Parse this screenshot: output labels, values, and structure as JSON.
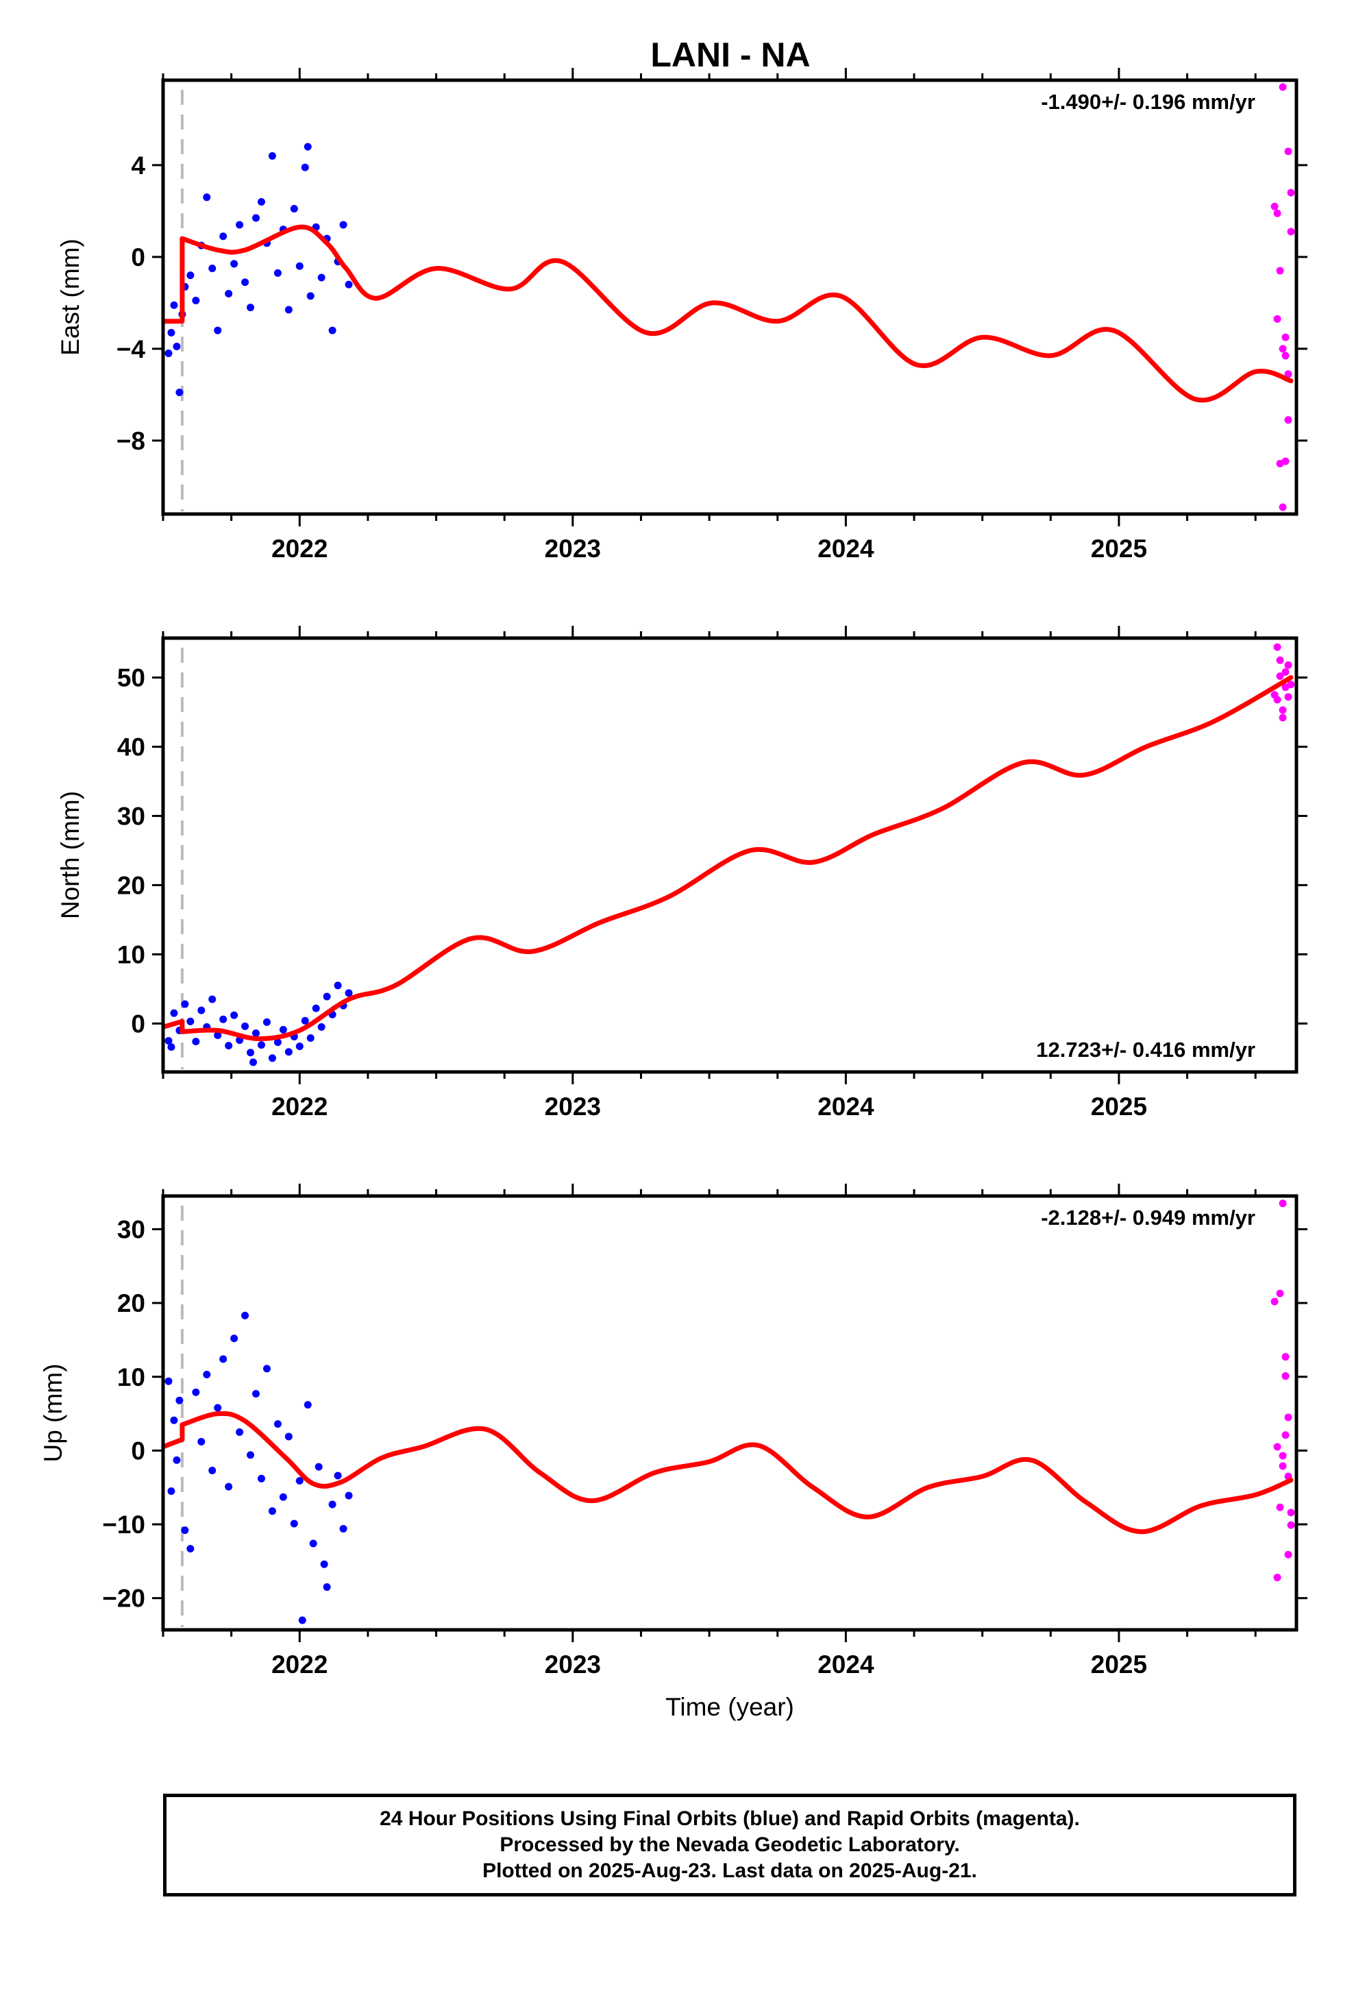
{
  "title": "LANI - NA",
  "colors": {
    "final": "#0000ff",
    "rapid": "#ff00ff",
    "model": "#ff0000",
    "event_line": "#bbbbbb"
  },
  "footer": {
    "line1": "24 Hour Positions Using Final Orbits (blue) and Rapid Orbits (magenta).",
    "line2": "Processed by the Nevada Geodetic Laboratory.",
    "line3": "Plotted on 2025-Aug-23. Last data on 2025-Aug-21."
  },
  "chart_data": [
    {
      "type": "scatter",
      "ylabel": "East (mm)",
      "xlabel": "",
      "xlim": [
        2021.5,
        2025.65
      ],
      "ylim": [
        -11.2,
        7.7
      ],
      "yticks": [
        4,
        0,
        -4,
        -8
      ],
      "xticks": [
        2022,
        2023,
        2024,
        2025
      ],
      "event_line_x": 2021.57,
      "rate_label": "-1.490+/- 0.196 mm/yr",
      "rate_label_position": "top-right",
      "series": [
        {
          "role": "final",
          "points": [
            [
              2021.52,
              -4.2
            ],
            [
              2021.53,
              -3.3
            ],
            [
              2021.54,
              -2.1
            ],
            [
              2021.55,
              -3.9
            ],
            [
              2021.56,
              -5.9
            ],
            [
              2021.57,
              -2.5
            ],
            [
              2021.58,
              -1.3
            ],
            [
              2021.6,
              -0.8
            ],
            [
              2021.62,
              -1.9
            ],
            [
              2021.64,
              0.5
            ],
            [
              2021.66,
              2.6
            ],
            [
              2021.68,
              -0.5
            ],
            [
              2021.7,
              -3.2
            ],
            [
              2021.72,
              0.9
            ],
            [
              2021.74,
              -1.6
            ],
            [
              2021.76,
              -0.3
            ],
            [
              2021.78,
              1.4
            ],
            [
              2021.8,
              -1.1
            ],
            [
              2021.82,
              -2.2
            ],
            [
              2021.84,
              1.7
            ],
            [
              2021.86,
              2.4
            ],
            [
              2021.88,
              0.6
            ],
            [
              2021.9,
              4.4
            ],
            [
              2021.92,
              -0.7
            ],
            [
              2021.94,
              1.2
            ],
            [
              2021.96,
              -2.3
            ],
            [
              2021.98,
              2.1
            ],
            [
              2022.0,
              -0.4
            ],
            [
              2022.02,
              3.9
            ],
            [
              2022.04,
              -1.7
            ],
            [
              2022.06,
              1.3
            ],
            [
              2022.08,
              -0.9
            ],
            [
              2022.1,
              0.8
            ],
            [
              2022.12,
              -3.2
            ],
            [
              2022.14,
              -0.2
            ],
            [
              2022.16,
              1.4
            ],
            [
              2022.18,
              -1.2
            ],
            [
              2022.03,
              4.8
            ]
          ]
        },
        {
          "role": "rapid",
          "points": [
            [
              2025.57,
              2.2
            ],
            [
              2025.58,
              -2.7
            ],
            [
              2025.59,
              -0.6
            ],
            [
              2025.6,
              -4.0
            ],
            [
              2025.61,
              -8.9
            ],
            [
              2025.62,
              -5.1
            ],
            [
              2025.6,
              7.4
            ],
            [
              2025.62,
              4.6
            ],
            [
              2025.63,
              2.8
            ],
            [
              2025.58,
              1.9
            ],
            [
              2025.61,
              -3.5
            ],
            [
              2025.62,
              -7.1
            ],
            [
              2025.59,
              -9.0
            ],
            [
              2025.6,
              -10.9
            ],
            [
              2025.63,
              1.1
            ],
            [
              2025.61,
              -4.3
            ]
          ]
        }
      ],
      "model": [
        [
          2021.5,
          -2.8
        ],
        [
          2021.57,
          -2.8
        ],
        [
          2021.57,
          0.8
        ],
        [
          2021.7,
          0.3
        ],
        [
          2021.8,
          0.3
        ],
        [
          2022.0,
          1.3
        ],
        [
          2022.1,
          0.6
        ],
        [
          2022.17,
          -0.5
        ],
        [
          2022.28,
          -1.8
        ],
        [
          2022.5,
          -0.5
        ],
        [
          2022.77,
          -1.4
        ],
        [
          2022.96,
          -0.2
        ],
        [
          2023.27,
          -3.3
        ],
        [
          2023.51,
          -2.0
        ],
        [
          2023.75,
          -2.8
        ],
        [
          2023.98,
          -1.7
        ],
        [
          2024.26,
          -4.7
        ],
        [
          2024.5,
          -3.5
        ],
        [
          2024.75,
          -4.3
        ],
        [
          2024.98,
          -3.2
        ],
        [
          2025.28,
          -6.2
        ],
        [
          2025.5,
          -5.0
        ],
        [
          2025.63,
          -5.4
        ]
      ]
    },
    {
      "type": "scatter",
      "ylabel": "North (mm)",
      "xlabel": "",
      "xlim": [
        2021.5,
        2025.65
      ],
      "ylim": [
        -7,
        55.7
      ],
      "yticks": [
        50,
        40,
        30,
        20,
        10,
        0
      ],
      "xticks": [
        2022,
        2023,
        2024,
        2025
      ],
      "event_line_x": 2021.57,
      "rate_label": "12.723+/- 0.416 mm/yr",
      "rate_label_position": "bottom-right",
      "series": [
        {
          "role": "final",
          "points": [
            [
              2021.52,
              -2.5
            ],
            [
              2021.54,
              1.5
            ],
            [
              2021.56,
              -1.0
            ],
            [
              2021.58,
              2.8
            ],
            [
              2021.6,
              0.3
            ],
            [
              2021.62,
              -2.6
            ],
            [
              2021.64,
              1.9
            ],
            [
              2021.66,
              -0.5
            ],
            [
              2021.68,
              3.5
            ],
            [
              2021.7,
              -1.7
            ],
            [
              2021.72,
              0.6
            ],
            [
              2021.74,
              -3.2
            ],
            [
              2021.76,
              1.2
            ],
            [
              2021.78,
              -2.4
            ],
            [
              2021.8,
              -0.4
            ],
            [
              2021.82,
              -4.2
            ],
            [
              2021.84,
              -1.4
            ],
            [
              2021.86,
              -3.1
            ],
            [
              2021.88,
              0.2
            ],
            [
              2021.9,
              -5.0
            ],
            [
              2021.92,
              -2.7
            ],
            [
              2021.94,
              -0.9
            ],
            [
              2021.96,
              -4.1
            ],
            [
              2021.98,
              -1.9
            ],
            [
              2022.0,
              -3.3
            ],
            [
              2022.02,
              0.4
            ],
            [
              2022.04,
              -2.1
            ],
            [
              2022.06,
              2.2
            ],
            [
              2022.08,
              -0.5
            ],
            [
              2022.1,
              3.9
            ],
            [
              2022.12,
              1.3
            ],
            [
              2022.14,
              5.5
            ],
            [
              2022.16,
              2.6
            ],
            [
              2022.18,
              4.4
            ],
            [
              2021.53,
              -3.4
            ],
            [
              2021.83,
              -5.6
            ]
          ]
        },
        {
          "role": "rapid",
          "points": [
            [
              2025.57,
              47.5
            ],
            [
              2025.58,
              54.4
            ],
            [
              2025.59,
              50.2
            ],
            [
              2025.6,
              45.3
            ],
            [
              2025.61,
              48.6
            ],
            [
              2025.62,
              51.8
            ],
            [
              2025.63,
              49.0
            ],
            [
              2025.6,
              44.2
            ],
            [
              2025.58,
              46.8
            ],
            [
              2025.62,
              47.2
            ],
            [
              2025.59,
              52.5
            ],
            [
              2025.61,
              50.8
            ]
          ]
        }
      ],
      "model": [
        [
          2021.5,
          -0.5
        ],
        [
          2021.57,
          0.3
        ],
        [
          2021.57,
          -1.2
        ],
        [
          2021.7,
          -1.0
        ],
        [
          2021.85,
          -2.2
        ],
        [
          2022.0,
          -1.0
        ],
        [
          2022.18,
          3.5
        ],
        [
          2022.35,
          5.5
        ],
        [
          2022.63,
          12.3
        ],
        [
          2022.85,
          10.4
        ],
        [
          2023.1,
          14.6
        ],
        [
          2023.35,
          18.3
        ],
        [
          2023.65,
          25.0
        ],
        [
          2023.88,
          23.3
        ],
        [
          2024.1,
          27.3
        ],
        [
          2024.35,
          31.0
        ],
        [
          2024.65,
          37.7
        ],
        [
          2024.87,
          35.9
        ],
        [
          2025.1,
          40.0
        ],
        [
          2025.35,
          43.7
        ],
        [
          2025.63,
          50.0
        ]
      ]
    },
    {
      "type": "scatter",
      "ylabel": "Up (mm)",
      "xlabel": "Time (year)",
      "xlim": [
        2021.5,
        2025.65
      ],
      "ylim": [
        -24.3,
        34.5
      ],
      "yticks": [
        30,
        20,
        10,
        0,
        -10,
        -20
      ],
      "xticks": [
        2022,
        2023,
        2024,
        2025
      ],
      "event_line_x": 2021.57,
      "rate_label": "-2.128+/- 0.949 mm/yr",
      "rate_label_position": "top-right",
      "series": [
        {
          "role": "final",
          "points": [
            [
              2021.52,
              9.4
            ],
            [
              2021.53,
              -5.5
            ],
            [
              2021.54,
              4.1
            ],
            [
              2021.55,
              -1.3
            ],
            [
              2021.56,
              6.8
            ],
            [
              2021.58,
              -10.8
            ],
            [
              2021.6,
              -13.3
            ],
            [
              2021.62,
              7.9
            ],
            [
              2021.64,
              1.2
            ],
            [
              2021.66,
              10.3
            ],
            [
              2021.68,
              -2.7
            ],
            [
              2021.7,
              5.8
            ],
            [
              2021.72,
              12.4
            ],
            [
              2021.74,
              -4.9
            ],
            [
              2021.76,
              15.2
            ],
            [
              2021.78,
              2.5
            ],
            [
              2021.8,
              18.3
            ],
            [
              2021.82,
              -0.6
            ],
            [
              2021.84,
              7.7
            ],
            [
              2021.86,
              -3.8
            ],
            [
              2021.88,
              11.1
            ],
            [
              2021.9,
              -8.2
            ],
            [
              2021.92,
              3.6
            ],
            [
              2021.94,
              -6.3
            ],
            [
              2021.96,
              1.9
            ],
            [
              2021.98,
              -9.9
            ],
            [
              2022.0,
              -4.1
            ],
            [
              2022.01,
              -23.0
            ],
            [
              2022.03,
              6.2
            ],
            [
              2022.05,
              -12.6
            ],
            [
              2022.07,
              -2.2
            ],
            [
              2022.09,
              -15.4
            ],
            [
              2022.1,
              -18.5
            ],
            [
              2022.12,
              -7.3
            ],
            [
              2022.14,
              -3.4
            ],
            [
              2022.16,
              -10.6
            ],
            [
              2022.18,
              -6.1
            ]
          ]
        },
        {
          "role": "rapid",
          "points": [
            [
              2025.57,
              20.2
            ],
            [
              2025.58,
              -17.2
            ],
            [
              2025.59,
              21.3
            ],
            [
              2025.6,
              -0.7
            ],
            [
              2025.61,
              12.7
            ],
            [
              2025.62,
              -3.5
            ],
            [
              2025.63,
              -10.1
            ],
            [
              2025.6,
              33.5
            ],
            [
              2025.62,
              4.5
            ],
            [
              2025.58,
              0.5
            ],
            [
              2025.61,
              10.1
            ],
            [
              2025.62,
              -14.1
            ],
            [
              2025.59,
              -7.7
            ],
            [
              2025.6,
              -2.1
            ],
            [
              2025.63,
              -8.4
            ],
            [
              2025.61,
              2.1
            ]
          ]
        }
      ],
      "model": [
        [
          2021.5,
          0.5
        ],
        [
          2021.57,
          1.5
        ],
        [
          2021.57,
          3.5
        ],
        [
          2021.7,
          5.0
        ],
        [
          2021.8,
          4.0
        ],
        [
          2021.95,
          -1.0
        ],
        [
          2022.05,
          -4.5
        ],
        [
          2022.15,
          -4.3
        ],
        [
          2022.3,
          -1.0
        ],
        [
          2022.45,
          0.5
        ],
        [
          2022.68,
          2.9
        ],
        [
          2022.88,
          -3.0
        ],
        [
          2023.07,
          -6.8
        ],
        [
          2023.3,
          -3.0
        ],
        [
          2023.5,
          -1.5
        ],
        [
          2023.68,
          0.7
        ],
        [
          2023.88,
          -5.0
        ],
        [
          2024.08,
          -9.0
        ],
        [
          2024.3,
          -5.0
        ],
        [
          2024.5,
          -3.5
        ],
        [
          2024.68,
          -1.3
        ],
        [
          2024.88,
          -7.0
        ],
        [
          2025.08,
          -11.0
        ],
        [
          2025.3,
          -7.5
        ],
        [
          2025.5,
          -6.0
        ],
        [
          2025.63,
          -4.0
        ]
      ]
    }
  ]
}
